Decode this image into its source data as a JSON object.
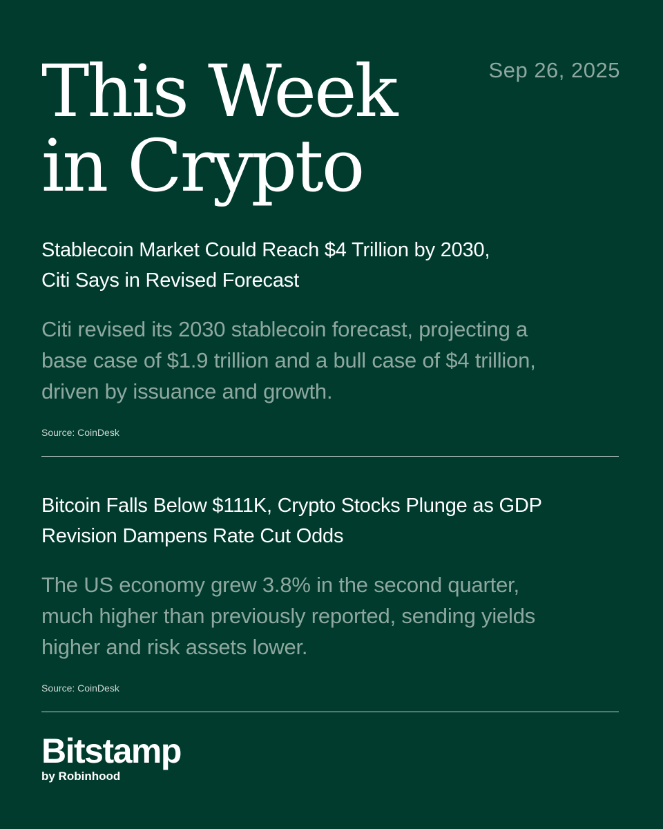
{
  "header": {
    "title_line1": "This Week",
    "title_line2": "in Crypto",
    "date": "Sep 26, 2025"
  },
  "articles": [
    {
      "headline_line1": "Stablecoin Market Could Reach $4 Trillion by 2030,",
      "headline_line2": "Citi Says in Revised Forecast",
      "summary_line1": "Citi revised its 2030 stablecoin forecast, projecting a",
      "summary_line2": "base case of $1.9 trillion and a bull case of $4 trillion,",
      "summary_line3": "driven by issuance and growth.",
      "source": "Source: CoinDesk"
    },
    {
      "headline_line1": "Bitcoin Falls Below $111K, Crypto Stocks Plunge as GDP",
      "headline_line2": "Revision Dampens Rate Cut Odds",
      "summary_line1": "The US economy grew 3.8% in the second quarter,",
      "summary_line2": "much higher than previously reported, sending yields",
      "summary_line3": "higher and risk assets lower.",
      "source": "Source: CoinDesk"
    }
  ],
  "brand": {
    "name": "Bitstamp",
    "tagline": "by Robinhood"
  },
  "colors": {
    "background": "#003b2d",
    "title": "#ffffff",
    "muted_text": "#8fa89f",
    "divider": "#c5d2cc"
  }
}
